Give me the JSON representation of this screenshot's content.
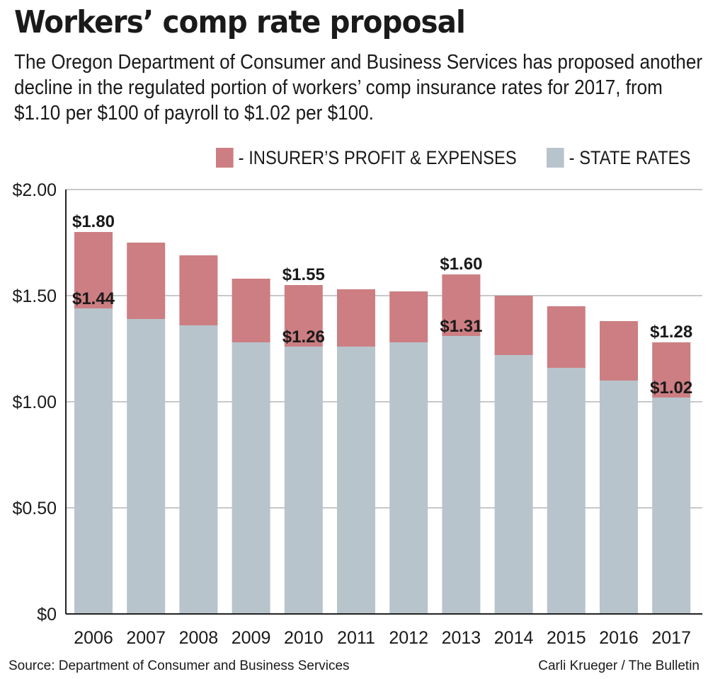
{
  "chart_data": {
    "type": "bar",
    "stacked": true,
    "title": "Workers’ comp rate proposal",
    "subtitle": "The Oregon Department of Consumer and Business Services has proposed another decline in the regulated portion of workers’ comp insurance rates for 2017, from $1.10 per $100 of payroll to $1.02 per $100.",
    "categories": [
      "2006",
      "2007",
      "2008",
      "2009",
      "2010",
      "2011",
      "2012",
      "2013",
      "2014",
      "2015",
      "2016",
      "2017"
    ],
    "series": [
      {
        "name": "- STATE RATES",
        "color": "#b8c4cc",
        "values": [
          1.44,
          1.39,
          1.36,
          1.28,
          1.26,
          1.26,
          1.28,
          1.31,
          1.22,
          1.16,
          1.1,
          1.02
        ]
      },
      {
        "name": "- INSURER’S PROFIT & EXPENSES",
        "color": "#cc7e82",
        "values": [
          0.36,
          0.36,
          0.33,
          0.3,
          0.29,
          0.27,
          0.24,
          0.29,
          0.28,
          0.29,
          0.28,
          0.26
        ]
      }
    ],
    "totals": [
      1.8,
      1.75,
      1.69,
      1.58,
      1.55,
      1.53,
      1.52,
      1.6,
      1.5,
      1.45,
      1.38,
      1.28
    ],
    "y_ticks": [
      "$0",
      "$0.50",
      "$1.00",
      "$1.50",
      "$2.00"
    ],
    "y_tick_values": [
      0,
      0.5,
      1.0,
      1.5,
      2.0
    ],
    "ylim": [
      0,
      2.0
    ],
    "grid": true,
    "legend_position": "top-right",
    "annotations": [
      {
        "category_index": 0,
        "value": 1.8,
        "text": "$1.80",
        "kind": "total"
      },
      {
        "category_index": 0,
        "value": 1.44,
        "text": "$1.44",
        "kind": "state"
      },
      {
        "category_index": 4,
        "value": 1.55,
        "text": "$1.55",
        "kind": "total"
      },
      {
        "category_index": 4,
        "value": 1.26,
        "text": "$1.26",
        "kind": "state"
      },
      {
        "category_index": 7,
        "value": 1.6,
        "text": "$1.60",
        "kind": "total"
      },
      {
        "category_index": 7,
        "value": 1.31,
        "text": "$1.31",
        "kind": "state"
      },
      {
        "category_index": 11,
        "value": 1.28,
        "text": "$1.28",
        "kind": "total"
      },
      {
        "category_index": 11,
        "value": 1.02,
        "text": "$1.02",
        "kind": "state"
      }
    ],
    "source": "Source: Department of Consumer and Business Services",
    "credit": "Carli Krueger / The Bulletin"
  }
}
